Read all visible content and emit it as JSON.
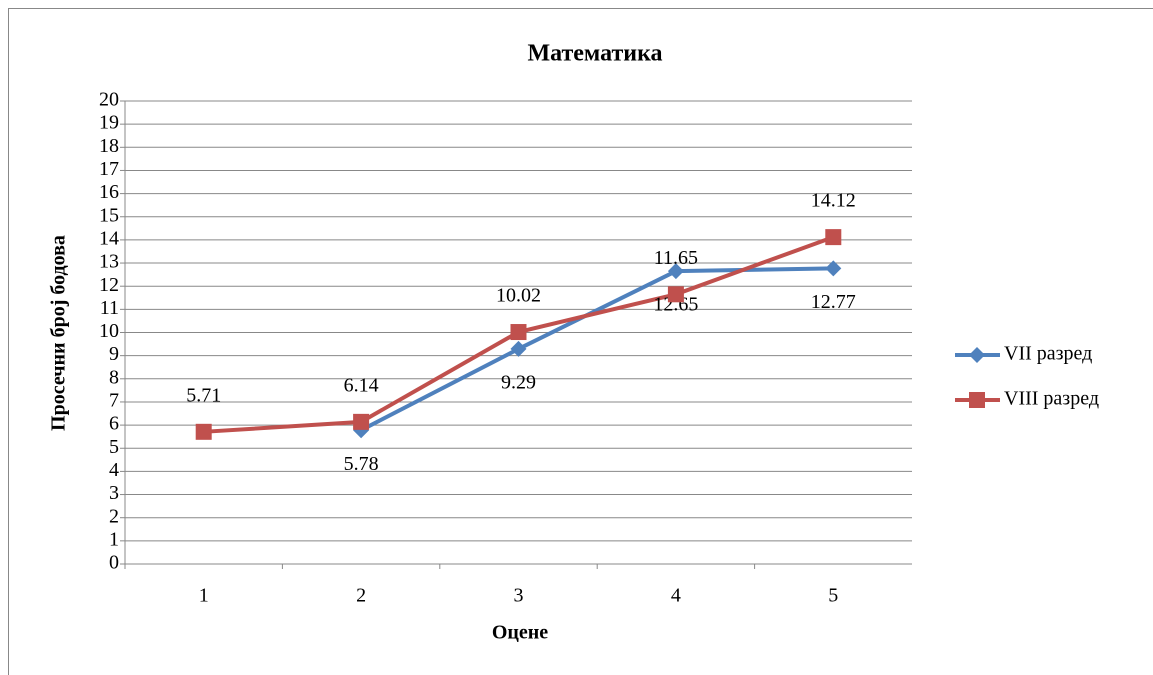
{
  "chart_data": {
    "type": "line",
    "title": "Математика",
    "x_label": "Оцене",
    "y_label": "Просечни број бодова",
    "categories": [
      "1",
      "2",
      "3",
      "4",
      "5"
    ],
    "series": [
      {
        "name": "VII разред",
        "color": "#4f81bd",
        "marker": "diamond",
        "label_position": "below",
        "values": [
          null,
          5.78,
          9.29,
          12.65,
          12.77
        ]
      },
      {
        "name": "VIII разред",
        "color": "#c0504d",
        "marker": "square",
        "label_position": "above",
        "values": [
          5.71,
          6.14,
          10.02,
          11.65,
          14.12
        ]
      }
    ],
    "ylim": [
      0,
      20
    ],
    "yticks": [
      0,
      1,
      2,
      3,
      4,
      5,
      6,
      7,
      8,
      9,
      10,
      11,
      12,
      13,
      14,
      15,
      16,
      17,
      18,
      19,
      20
    ],
    "grid": true,
    "legend": "right"
  }
}
